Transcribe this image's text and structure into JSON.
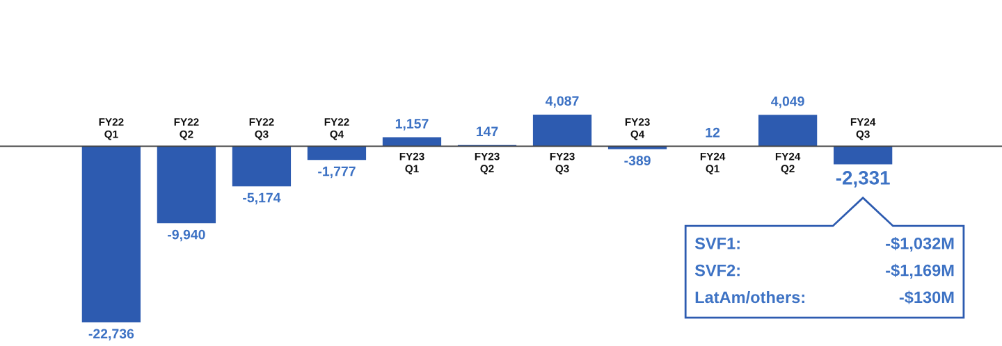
{
  "chart_data": {
    "type": "bar",
    "categories": [
      "FY22\nQ1",
      "FY22\nQ2",
      "FY22\nQ3",
      "FY22\nQ4",
      "FY23\nQ1",
      "FY23\nQ2",
      "FY23\nQ3",
      "FY23\nQ4",
      "FY24\nQ1",
      "FY24\nQ2",
      "FY24\nQ3"
    ],
    "values": [
      -22736,
      -9940,
      -5174,
      -1777,
      1157,
      147,
      4087,
      -389,
      12,
      4049,
      -2331
    ],
    "color": "#2d5bb0",
    "value_labels": [
      "-22,736",
      "-9,940",
      "-5,174",
      "-1,777",
      "1,157",
      "147",
      "4,087",
      "-389",
      "12",
      "4,049",
      "-2,331"
    ],
    "annotations": [
      "SVF1:",
      "-$1,032M",
      "SVF2:",
      "-$1,169M",
      "LatAm/others:",
      "-$130M"
    ]
  }
}
